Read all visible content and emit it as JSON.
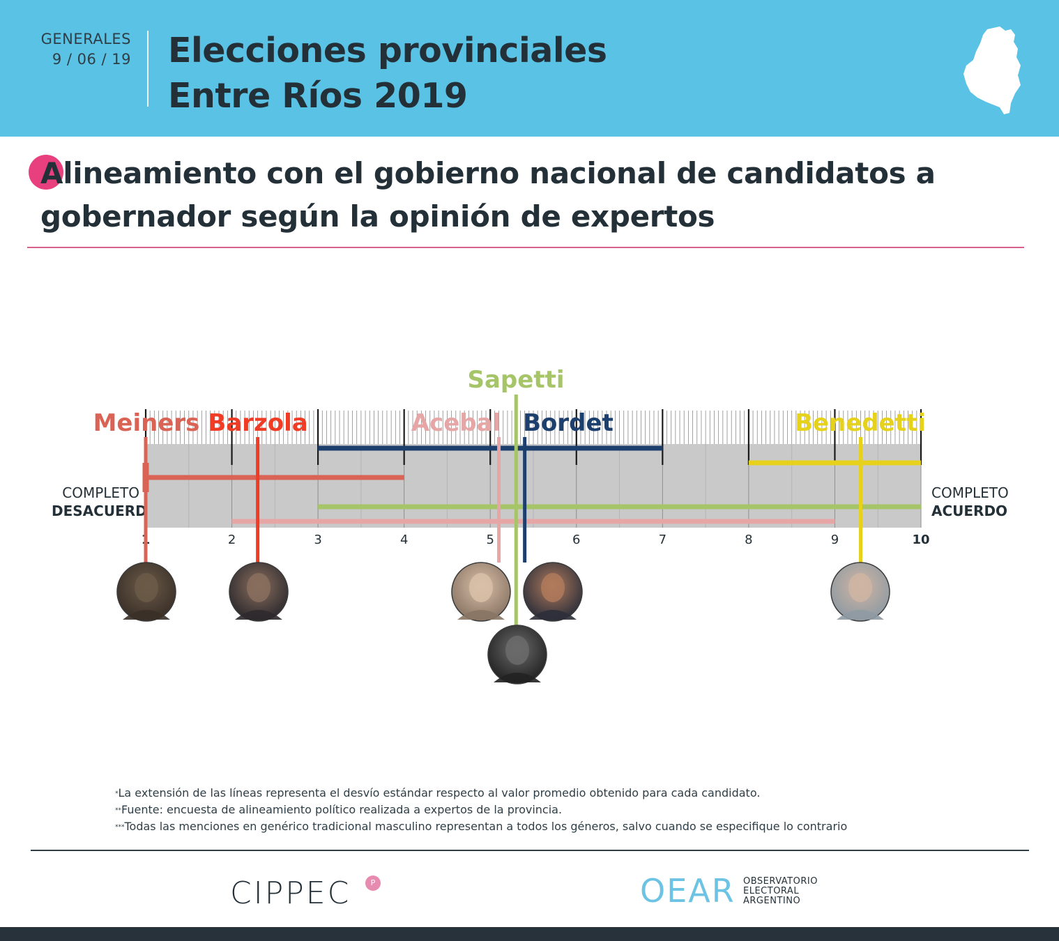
{
  "header": {
    "kicker": "GENERALES",
    "date": "9 / 06 / 19",
    "title_line1": "Elecciones provinciales",
    "title_line2": "Entre Ríos 2019",
    "map_icon": "entre-rios-map-icon",
    "background_color": "#5ac2e4"
  },
  "subtitle": {
    "line1": "Alineamiento con el gobierno nacional de candidatos a",
    "line2": "gobernador según la opinión de expertos",
    "accent_color": "#e8407e"
  },
  "chart_data": {
    "type": "scatter",
    "xlim": [
      1,
      10
    ],
    "x_ticks": [
      "1",
      "2",
      "3",
      "4",
      "5",
      "6",
      "7",
      "8",
      "9",
      "10"
    ],
    "left_label_line1": "COMPLETO",
    "left_label_line2": "DESACUERDO",
    "right_label_line1": "COMPLETO",
    "right_label_line2": "ACUERDO",
    "series": [
      {
        "name": "Meiners",
        "mean": 1.0,
        "sd_low": 1.0,
        "sd_high": 4.0,
        "color": "#d96455",
        "photo": "meiners-photo"
      },
      {
        "name": "Barzola",
        "mean": 2.3,
        "sd_low": 1.0,
        "sd_high": 4.0,
        "color": "#f03c24",
        "photo": "barzola-photo"
      },
      {
        "name": "Acebal",
        "mean": 5.1,
        "sd_low": 2.0,
        "sd_high": 9.0,
        "color": "#e6a6a6",
        "photo": "acebal-photo"
      },
      {
        "name": "Sapetti",
        "mean": 5.3,
        "sd_low": 3.0,
        "sd_high": 10.0,
        "color": "#a6c468",
        "photo": "sapetti-photo"
      },
      {
        "name": "Bordet",
        "mean": 5.4,
        "sd_low": 3.0,
        "sd_high": 7.0,
        "color": "#1d3f6e",
        "photo": "bordet-photo"
      },
      {
        "name": "Benedetti",
        "mean": 9.3,
        "sd_low": 8.0,
        "sd_high": 10.0,
        "color": "#e6d21c",
        "photo": "benedetti-photo"
      }
    ]
  },
  "notes": {
    "n1_mark": "*",
    "n1": "La extensión de las líneas representa el desvío estándar respecto al valor promedio obtenido para cada candidato.",
    "n2_mark": "**",
    "n2": "Fuente: encuesta de alineamiento político realizada a expertos de la provincia.",
    "n3_mark": "***",
    "n3": "Todas las menciones en genérico tradicional masculino representan a todos los géneros, salvo cuando se especifique lo contrario"
  },
  "footer": {
    "logo_cippec": "CIPPEC",
    "logo_cippec_badge": "P",
    "logo_oear": "OEAR",
    "oear_line1": "OBSERVATORIO",
    "oear_line2": "ELECTORAL",
    "oear_line3": "ARGENTINO"
  }
}
